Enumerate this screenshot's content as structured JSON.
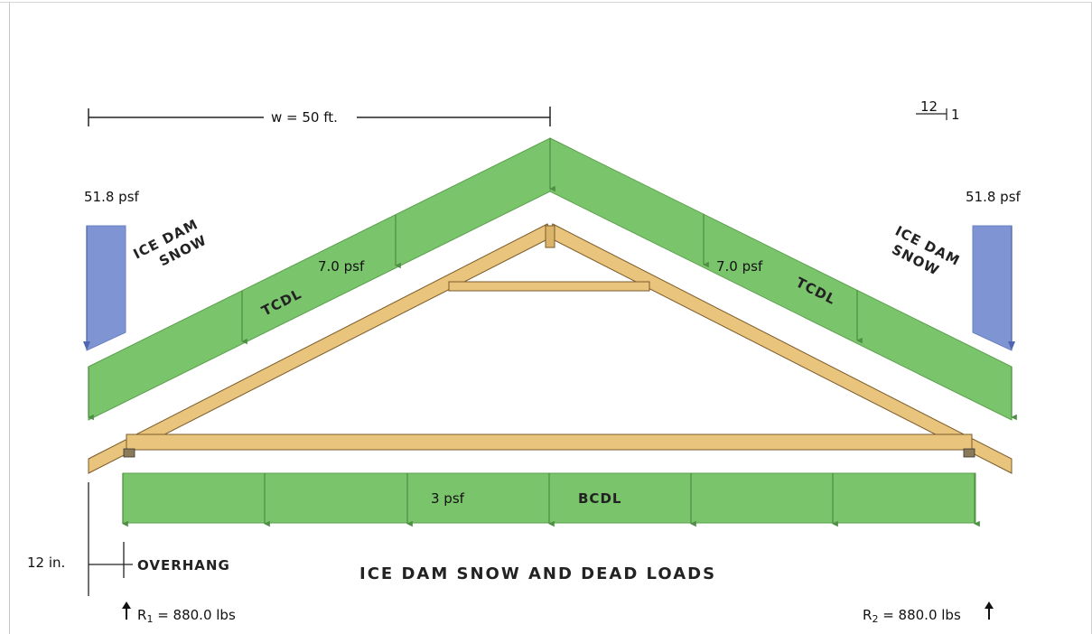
{
  "diagram": {
    "title": "ICE DAM SNOW AND DEAD LOADS",
    "span_label": "w = 50 ft.",
    "pitch": {
      "rise": "12",
      "run": "1"
    },
    "ice_dam_left": {
      "value": "51.8 psf",
      "label_line1": "ICE DAM",
      "label_line2": "SNOW"
    },
    "ice_dam_right": {
      "value": "51.8 psf",
      "label_line1": "ICE DAM",
      "label_line2": "SNOW"
    },
    "tcdl_left": {
      "value": "7.0 psf",
      "label": "TCDL"
    },
    "tcdl_right": {
      "value": "7.0 psf",
      "label": "TCDL"
    },
    "bcdl": {
      "value": "3 psf",
      "label": "BCDL"
    },
    "overhang": {
      "value": "12 in.",
      "label": "OVERHANG"
    },
    "reaction_left": {
      "prefix": "R",
      "sub": "1",
      "text": " = 880.0 lbs"
    },
    "reaction_right": {
      "prefix": "R",
      "sub": "2",
      "text": " = 880.0 lbs"
    },
    "colors": {
      "load_green": "#7ac46c",
      "load_green_stroke": "#5aa04c",
      "snow_blue": "#7f95d3",
      "timber": "#e9c47c",
      "timber_stroke": "#7a5a2a"
    }
  }
}
